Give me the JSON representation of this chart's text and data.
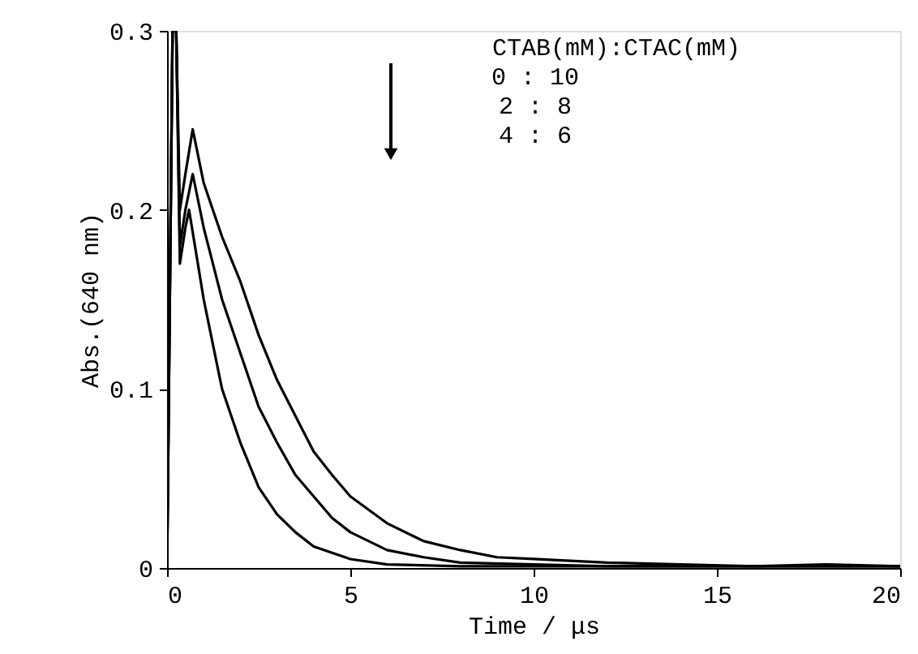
{
  "chart_data": {
    "type": "line",
    "xlabel": "Time / μs",
    "ylabel": "Abs.(640 nm)",
    "xlim": [
      0,
      20
    ],
    "ylim": [
      0,
      0.3
    ],
    "xticks": [
      0,
      5,
      10,
      15,
      20
    ],
    "yticks": [
      0,
      0.1,
      0.2,
      0.3
    ],
    "grid": false,
    "marker": "none",
    "line_style": "solid",
    "annotations": [
      "CTAB(mM):CTAC(mM)",
      "  0    :   10",
      "  2    :    8",
      "  4    :    6"
    ],
    "series": [
      {
        "color": "#000000",
        "x": [
          0,
          0.15,
          0.25,
          0.35,
          0.5,
          0.7,
          1,
          1.5,
          2,
          2.5,
          3,
          3.5,
          4,
          4.5,
          5,
          6,
          7,
          8,
          9,
          10,
          12,
          14,
          16,
          18,
          20
        ],
        "values": [
          0,
          0.3,
          0.3,
          0.2,
          0.22,
          0.245,
          0.215,
          0.185,
          0.16,
          0.13,
          0.105,
          0.085,
          0.065,
          0.052,
          0.04,
          0.025,
          0.015,
          0.01,
          0.006,
          0.005,
          0.003,
          0.002,
          0.001,
          0.002,
          0.001
        ]
      },
      {
        "color": "#000000",
        "x": [
          0,
          0.15,
          0.25,
          0.35,
          0.5,
          0.7,
          1,
          1.5,
          2,
          2.5,
          3,
          3.5,
          4,
          4.5,
          5,
          6,
          7,
          8,
          10,
          12,
          15,
          20
        ],
        "values": [
          0,
          0.3,
          0.3,
          0.18,
          0.2,
          0.22,
          0.19,
          0.15,
          0.12,
          0.09,
          0.07,
          0.052,
          0.04,
          0.028,
          0.02,
          0.01,
          0.006,
          0.003,
          0.002,
          0.001,
          0.001,
          0.001
        ]
      },
      {
        "color": "#000000",
        "x": [
          0,
          0.15,
          0.25,
          0.35,
          0.5,
          0.6,
          1,
          1.5,
          2,
          2.5,
          3,
          3.5,
          4,
          5,
          6,
          8,
          10,
          15,
          20
        ],
        "values": [
          0,
          0.3,
          0.3,
          0.17,
          0.19,
          0.2,
          0.15,
          0.1,
          0.07,
          0.045,
          0.03,
          0.02,
          0.012,
          0.005,
          0.002,
          0.001,
          0.001,
          0.001,
          0.001
        ]
      }
    ]
  }
}
